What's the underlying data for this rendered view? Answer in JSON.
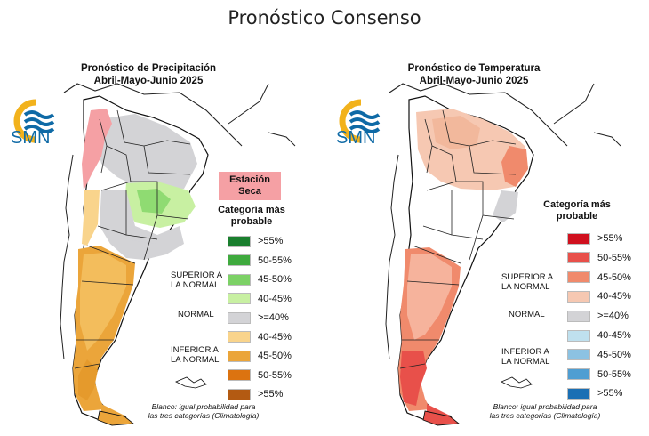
{
  "title": "Pronóstico Consenso",
  "precipitation": {
    "title_line1": "Pronóstico de Precipitación",
    "title_line2": "Abril-Mayo-Junio 2025",
    "logo_text": "SMN",
    "special_label_line1": "Estación",
    "special_label_line2": "Seca",
    "category_title_line1": "Categoría más",
    "category_title_line2": "probable",
    "legend": [
      {
        "label": ">55%",
        "color": "#1a7f2e"
      },
      {
        "label": "50-55%",
        "color": "#3faa3e"
      },
      {
        "label": "45-50%",
        "color": "#7cd166"
      },
      {
        "label": "40-45%",
        "color": "#c8f0a2"
      },
      {
        "label": ">=40%",
        "color": "#d3d3d6"
      },
      {
        "label": "40-45%",
        "color": "#f9d48c"
      },
      {
        "label": "45-50%",
        "color": "#eba53a"
      },
      {
        "label": "50-55%",
        "color": "#dc7310"
      },
      {
        "label": ">55%",
        "color": "#b35a12"
      }
    ],
    "groups": {
      "above_line1": "SUPERIOR A",
      "above_line2": "LA NORMAL",
      "normal": "NORMAL",
      "below_line1": "INFERIOR A",
      "below_line2": "LA NORMAL"
    },
    "footnote_line1": "Blanco: igual probabilidad para",
    "footnote_line2": "las tres categorías (Climatología)"
  },
  "temperature": {
    "title_line1": "Pronóstico de Temperatura",
    "title_line2": "Abril-Mayo-Junio 2025",
    "logo_text": "SMN",
    "category_title_line1": "Categoría más",
    "category_title_line2": "probable",
    "legend": [
      {
        "label": ">55%",
        "color": "#d0101e"
      },
      {
        "label": "50-55%",
        "color": "#e8504a"
      },
      {
        "label": "45-50%",
        "color": "#f08a6c"
      },
      {
        "label": "40-45%",
        "color": "#f6c8b2"
      },
      {
        "label": ">=40%",
        "color": "#d3d3d6"
      },
      {
        "label": "40-45%",
        "color": "#bfe0ee"
      },
      {
        "label": "45-50%",
        "color": "#8cc2e2"
      },
      {
        "label": "50-55%",
        "color": "#4f9ed2"
      },
      {
        "label": ">55%",
        "color": "#1a6fb4"
      }
    ],
    "groups": {
      "above_line1": "SUPERIOR A",
      "above_line2": "LA NORMAL",
      "normal": "NORMAL",
      "below_line1": "INFERIOR A",
      "below_line2": "LA NORMAL"
    },
    "footnote_line1": "Blanco: igual probabilidad para",
    "footnote_line2": "las tres categorías (Climatología)"
  },
  "colors": {
    "logo_blue": "#0f6aa6",
    "logo_sun": "#f2b21c",
    "border": "#111111"
  }
}
